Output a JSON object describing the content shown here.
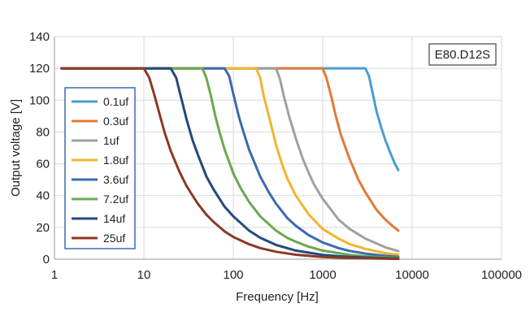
{
  "chart_data": {
    "type": "line",
    "title": "",
    "model_label": "E80.D12S",
    "xlabel": "Frequency [Hz]",
    "ylabel": "Output voltage [V]",
    "x_scale": "log",
    "xlim": [
      1,
      100000
    ],
    "ylim": [
      0,
      140
    ],
    "x_ticks": [
      1,
      10,
      100,
      1000,
      10000,
      100000
    ],
    "x_tick_labels": [
      "1",
      "10",
      "100",
      "1000",
      "10000",
      "100000"
    ],
    "y_ticks": [
      0,
      20,
      40,
      60,
      80,
      100,
      120,
      140
    ],
    "y_tick_labels": [
      "0",
      "20",
      "40",
      "60",
      "80",
      "100",
      "120",
      "140"
    ],
    "grid": true,
    "legend_position": "left",
    "series": [
      {
        "name": "0.1uf",
        "color": "#4a9cd1",
        "x": [
          1.2,
          3000,
          3300,
          3600,
          4000,
          4500,
          5000,
          5600,
          6300,
          7000
        ],
        "y": [
          120,
          120,
          115,
          105,
          93,
          83,
          75,
          68,
          61,
          56
        ]
      },
      {
        "name": "0.3uf",
        "color": "#e2793a",
        "x": [
          1.2,
          1000,
          1100,
          1250,
          1400,
          1600,
          2000,
          2500,
          3000,
          4000,
          5000,
          6000,
          7000
        ],
        "y": [
          120,
          120,
          114,
          102,
          90,
          78,
          63,
          50,
          42,
          31,
          25,
          21,
          18
        ]
      },
      {
        "name": "1uf",
        "color": "#a0a0a0",
        "x": [
          1.2,
          300,
          330,
          370,
          420,
          500,
          600,
          700,
          800,
          1000,
          1500,
          2000,
          3000,
          5000,
          7000
        ],
        "y": [
          120,
          120,
          114,
          102,
          90,
          76,
          63,
          54,
          47,
          38,
          25,
          19,
          13,
          7.5,
          5
        ]
      },
      {
        "name": "1.8uf",
        "color": "#f2b531",
        "x": [
          1.2,
          180,
          200,
          220,
          250,
          300,
          350,
          400,
          500,
          700,
          1000,
          1500,
          2000,
          3000,
          5000,
          7000
        ],
        "y": [
          120,
          120,
          114,
          102,
          90,
          72,
          60,
          51,
          40,
          28,
          19,
          13,
          9.5,
          6.5,
          3.8,
          2.8
        ]
      },
      {
        "name": "3.6uf",
        "color": "#3b6ab0",
        "x": [
          1.2,
          80,
          90,
          100,
          115,
          130,
          150,
          200,
          250,
          300,
          400,
          500,
          700,
          1000,
          1500,
          2000,
          3000,
          5000,
          7000
        ],
        "y": [
          120,
          120,
          115,
          104,
          90,
          80,
          69,
          52,
          42,
          35,
          26,
          21,
          15,
          10.5,
          7,
          5.2,
          3.5,
          2.1,
          1.5
        ]
      },
      {
        "name": "7.2uf",
        "color": "#6aa84f",
        "x": [
          1.2,
          45,
          50,
          56,
          63,
          70,
          80,
          100,
          120,
          150,
          200,
          300,
          400,
          500,
          700,
          1000,
          2000,
          3000,
          5000,
          7000
        ],
        "y": [
          120,
          120,
          114,
          103,
          90,
          80,
          69,
          54,
          45,
          36,
          27,
          18,
          13.5,
          11,
          7.8,
          5.4,
          2.7,
          1.8,
          1.1,
          0.8
        ]
      },
      {
        "name": "14uf",
        "color": "#24497f",
        "x": [
          1.2,
          20,
          23,
          26,
          30,
          35,
          40,
          50,
          60,
          70,
          80,
          100,
          150,
          200,
          300,
          500,
          1000,
          2000,
          5000,
          7000
        ],
        "y": [
          120,
          120,
          114,
          102,
          88,
          75,
          66,
          52,
          44,
          38,
          33,
          27,
          18,
          13.5,
          9,
          5.4,
          2.7,
          1.4,
          0.6,
          0.4
        ]
      },
      {
        "name": "25uf",
        "color": "#8b3a22",
        "x": [
          1.2,
          10,
          11.5,
          13,
          15,
          17,
          20,
          25,
          30,
          40,
          50,
          60,
          80,
          100,
          150,
          200,
          300,
          500,
          1000,
          2000,
          5000,
          7000
        ],
        "y": [
          120,
          120,
          114,
          104,
          91,
          80,
          68,
          55,
          46,
          35,
          28,
          23.5,
          17.5,
          14,
          9.4,
          7,
          4.7,
          2.8,
          1.4,
          0.7,
          0.3,
          0.2
        ]
      }
    ]
  }
}
